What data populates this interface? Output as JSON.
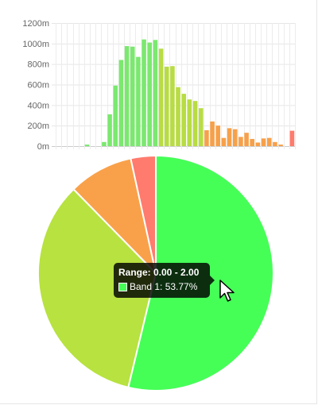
{
  "chart_data": [
    {
      "type": "bar",
      "title": "",
      "xlabel": "",
      "ylabel": "",
      "ylim": [
        0,
        1200
      ],
      "y_ticks": [
        "0m",
        "200m",
        "400m",
        "600m",
        "800m",
        "1000m",
        "1200m"
      ],
      "y_tick_values": [
        0,
        200,
        400,
        600,
        800,
        1000,
        1200
      ],
      "grid": true,
      "values": [
        0,
        0,
        0,
        0,
        0,
        15,
        0,
        0,
        40,
        310,
        590,
        840,
        975,
        970,
        870,
        1040,
        1010,
        1035,
        950,
        775,
        780,
        575,
        510,
        455,
        440,
        370,
        155,
        240,
        200,
        80,
        175,
        165,
        90,
        130,
        70,
        35,
        75,
        80,
        40,
        15,
        0,
        150
      ],
      "bar_colors": [
        "#7be86f",
        "#7be86f",
        "#7be86f",
        "#7be86f",
        "#7be86f",
        "#7be86f",
        "#7be86f",
        "#7be86f",
        "#7be86f",
        "#7be86f",
        "#7be86f",
        "#7be86f",
        "#7be86f",
        "#7be86f",
        "#7be86f",
        "#7be86f",
        "#7be86f",
        "#7be86f",
        "#b8dc43",
        "#b8dc43",
        "#b8dc43",
        "#b8dc43",
        "#b8dc43",
        "#b8dc43",
        "#b8dc43",
        "#b8dc43",
        "#f7a04a",
        "#f7a04a",
        "#f7a04a",
        "#f7a04a",
        "#f7a04a",
        "#f7a04a",
        "#f7a04a",
        "#f7a04a",
        "#f7a04a",
        "#f7a04a",
        "#f7a04a",
        "#f7a04a",
        "#f7a04a",
        "#f7a04a",
        "#ff7b6b",
        "#ff7b6b"
      ]
    },
    {
      "type": "pie",
      "slices": [
        {
          "value": 53.77,
          "color": "#45ff57"
        },
        {
          "value": 33.9,
          "color": "#b7e240"
        },
        {
          "value": 8.9,
          "color": "#f9a14a"
        },
        {
          "value": 3.43,
          "color": "#ff7b6d"
        }
      ]
    }
  ],
  "tooltip": {
    "title": "Range: 0.00 - 2.00",
    "label": "Band 1: 53.77%",
    "swatch_color": "#45ff57"
  }
}
